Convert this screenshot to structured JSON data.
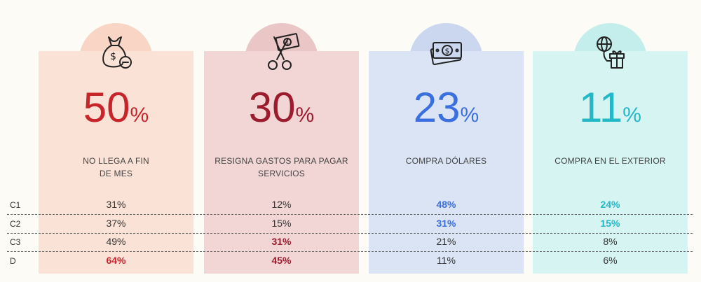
{
  "chart_data": {
    "type": "table",
    "title": "",
    "row_labels": [
      "C1",
      "C2",
      "C3",
      "D"
    ],
    "columns": [
      {
        "name": "no-llega-a-fin-de-mes",
        "icon": "money-bag-minus-icon",
        "headline": "50",
        "unit": "%",
        "label_lines": [
          "NO LLEGA A FIN",
          "DE MES"
        ],
        "color": "#c8252b",
        "card_color": "#fbe2d6",
        "bubble_color": "#f8d5c5",
        "values": [
          "31%",
          "37%",
          "49%",
          "64%"
        ],
        "highlight": [
          false,
          false,
          false,
          true
        ]
      },
      {
        "name": "resigna-gastos",
        "icon": "scissors-cutting-bill-icon",
        "headline": "30",
        "unit": "%",
        "label_lines": [
          "RESIGNA GASTOS PARA PAGAR",
          "SERVICIOS"
        ],
        "color": "#9c1b2c",
        "card_color": "#f2d6d6",
        "bubble_color": "#eac6c6",
        "values": [
          "12%",
          "15%",
          "31%",
          "45%"
        ],
        "highlight": [
          false,
          false,
          true,
          true
        ]
      },
      {
        "name": "compra-dolares",
        "icon": "dollar-bills-icon",
        "headline": "23",
        "unit": "%",
        "label_lines": [
          "COMPRA DÓLARES"
        ],
        "color": "#3a6fe0",
        "card_color": "#dbe4f4",
        "bubble_color": "#cad7ee",
        "values": [
          "48%",
          "31%",
          "21%",
          "11%"
        ],
        "highlight": [
          true,
          true,
          false,
          false
        ]
      },
      {
        "name": "compra-en-el-exterior",
        "icon": "globe-gift-icon",
        "headline": "11",
        "unit": "%",
        "label_lines": [
          "COMPRA EN EL EXTERIOR"
        ],
        "color": "#22b8c8",
        "card_color": "#d5f4f2",
        "bubble_color": "#c4eeec",
        "values": [
          "24%",
          "15%",
          "8%",
          "6%"
        ],
        "highlight": [
          true,
          true,
          false,
          false
        ]
      }
    ]
  }
}
